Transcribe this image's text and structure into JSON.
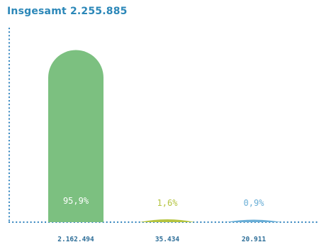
{
  "title": "Insgesamt 2.255.885",
  "colors": {
    "axis": "#2f82bd",
    "title": "#2b87b8",
    "bar_labels": [
      "#ffffff",
      "#b5c440",
      "#6aaed6"
    ]
  },
  "chart_data": {
    "type": "bar",
    "title": "Insgesamt 2.255.885",
    "categories": [
      "2.162.494",
      "35.434",
      "20.911"
    ],
    "values": [
      2162494,
      35434,
      20911
    ],
    "value_labels": [
      "2.162.494",
      "35.434",
      "20.911"
    ],
    "percent_labels": [
      "95,9%",
      "1,6%",
      "0,9%"
    ],
    "bar_colors": [
      "#7cc080",
      "#b5c440",
      "#6aaed6"
    ],
    "xlabel": "",
    "ylabel": "",
    "ylim": [
      0,
      2255885
    ],
    "grid": false,
    "legend": "none"
  }
}
